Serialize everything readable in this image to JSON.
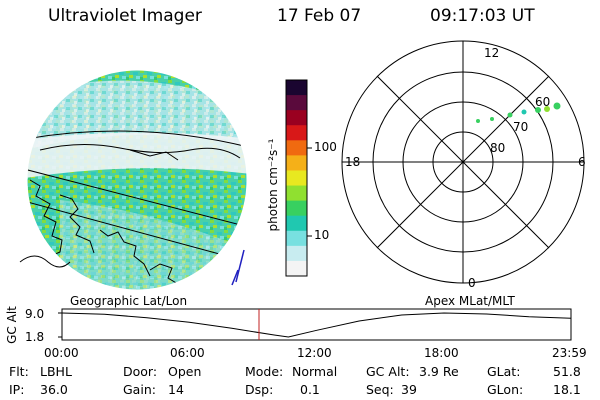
{
  "header": {
    "instrument": "Ultraviolet Imager",
    "date": "17 Feb 07",
    "time": "09:17:03 UT"
  },
  "colorbar": {
    "unit_label": "photon cm⁻²s⁻¹",
    "ticks": [
      "100",
      "10"
    ],
    "colors": [
      "#1a0530",
      "#5a0a3c",
      "#9a0020",
      "#d81818",
      "#f06a10",
      "#f5b018",
      "#e8e820",
      "#90e030",
      "#38d060",
      "#20c8b0",
      "#78e0e0",
      "#c8ecf0",
      "#f4f4f4"
    ]
  },
  "polar_plot": {
    "mlt_labels": {
      "top": "12",
      "left": "18",
      "right": "6",
      "bottom": "0"
    },
    "lat_labels": [
      "60",
      "70",
      "80"
    ]
  },
  "timeline": {
    "left_title": "Geographic Lat/Lon",
    "right_title": "Apex MLat/MLT",
    "axis_label": "GC Alt",
    "y_ticks": [
      "9.0",
      "1.8"
    ],
    "x_ticks": [
      "00:00",
      "06:00",
      "12:00",
      "18:00",
      "23:59"
    ],
    "current_time_marker": "09:17",
    "altitude_curve": {
      "t": [
        "00:00",
        "02:00",
        "04:00",
        "06:00",
        "08:00",
        "10:00",
        "10:40",
        "12:00",
        "14:00",
        "16:00",
        "18:00",
        "20:00",
        "22:00",
        "23:59"
      ],
      "gc_alt": [
        9.0,
        8.6,
        7.6,
        6.2,
        4.4,
        2.4,
        1.8,
        3.8,
        6.6,
        8.4,
        9.0,
        8.7,
        7.9,
        7.4
      ]
    }
  },
  "status": {
    "filter_key": "Flt:",
    "filter": "LBHL",
    "ip_key": "IP:",
    "ip": "36.0",
    "door_key": "Door:",
    "door": "Open",
    "gain_key": "Gain:",
    "gain": "14",
    "mode_key": "Mode:",
    "mode": "Normal",
    "dsp_key": "Dsp:",
    "dsp": "0.1",
    "gc_alt_key": "GC Alt:",
    "gc_alt": "3.9 Re",
    "seq_key": "Seq:",
    "seq": "39",
    "glat_key": "GLat:",
    "glat": "51.8",
    "glon_key": "GLon:",
    "glon": "18.1"
  }
}
